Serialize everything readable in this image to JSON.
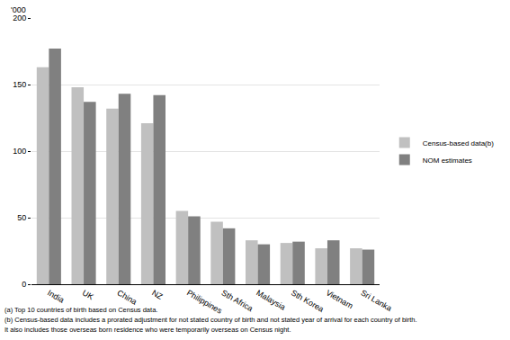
{
  "chart_data": {
    "type": "bar",
    "ylabel": "'000",
    "categories": [
      "India",
      "UK",
      "China",
      "NZ",
      "Philippines",
      "Sth Africa",
      "Malaysia",
      "Sth Korea",
      "Vietnam",
      "Sri Lanka"
    ],
    "series": [
      {
        "name": "Census-based data(b)",
        "color": "#c0c0c0",
        "values": [
          163,
          148,
          132,
          121,
          55,
          47,
          33,
          31,
          27,
          27
        ]
      },
      {
        "name": "NOM estimates",
        "color": "#808080",
        "values": [
          177,
          137,
          143,
          142,
          51,
          42,
          30,
          32,
          33,
          26
        ]
      }
    ],
    "ylim": [
      0,
      200
    ],
    "yticks": [
      0,
      50,
      100,
      150,
      200
    ],
    "grid": true,
    "legend": "right",
    "notes": [
      "(a) Top 10 countries of birth based on Census data.",
      "(b) Census-based data includes a prorated adjustment for not stated country of birth and not stated year of arrival for each country of birth.",
      "It also includes those overseas born residence who were temporarily overseas on Census night."
    ]
  }
}
